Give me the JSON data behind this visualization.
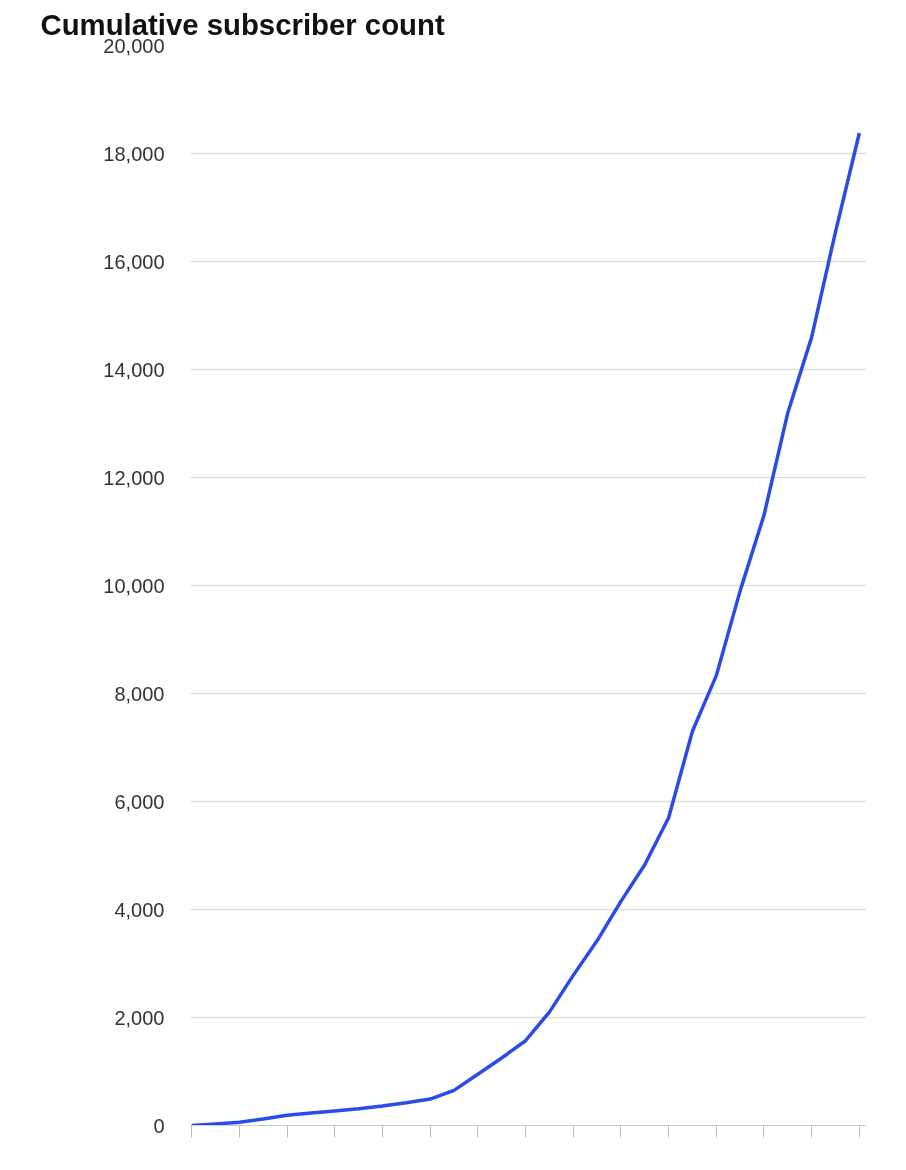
{
  "chart_data": {
    "type": "line",
    "title": "Cumulative subscriber count",
    "categories": [
      null,
      null,
      null,
      null,
      null,
      null,
      null,
      null,
      null,
      null,
      null,
      null,
      null,
      null,
      null,
      null,
      null,
      null,
      null,
      null,
      null,
      null,
      null,
      null,
      null,
      null,
      null,
      null,
      null
    ],
    "series": [
      {
        "color": "#2b4be8",
        "values": [
          0,
          30,
          60,
          120,
          190,
          230,
          270,
          310,
          360,
          420,
          490,
          650,
          950,
          1250,
          1570,
          2100,
          2780,
          3420,
          4150,
          4830,
          5700,
          7300,
          8330,
          9900,
          11300,
          13200,
          14600,
          16550,
          18380
        ]
      }
    ],
    "ylim": [
      0,
      20000
    ],
    "yticks": [
      {
        "value": 0,
        "label": "0"
      },
      {
        "value": 2000,
        "label": "2,000"
      },
      {
        "value": 4000,
        "label": "4,000"
      },
      {
        "value": 6000,
        "label": "6,000"
      },
      {
        "value": 8000,
        "label": "8,000"
      },
      {
        "value": 10000,
        "label": "10,000"
      },
      {
        "value": 12000,
        "label": "12,000"
      },
      {
        "value": 14000,
        "label": "14,000"
      },
      {
        "value": 16000,
        "label": "16,000"
      },
      {
        "value": 18000,
        "label": "18,000"
      },
      {
        "value": 20000,
        "label": "20,000"
      }
    ],
    "grid": "y",
    "tick_labels": "y",
    "marker": "none",
    "line_style": "solid"
  }
}
